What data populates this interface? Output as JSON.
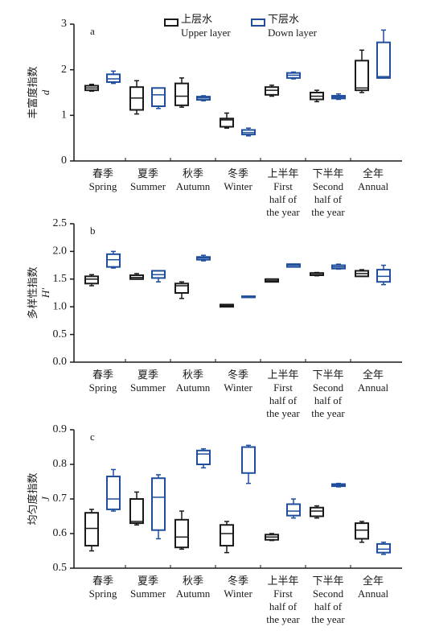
{
  "chart_data": [
    {
      "type": "box",
      "panel_label": "a",
      "ylabel": [
        "丰富度指数",
        "d"
      ],
      "categories": [
        [
          "春季",
          "Spring"
        ],
        [
          "夏季",
          "Summer"
        ],
        [
          "秋季",
          "Autumn"
        ],
        [
          "冬季",
          "Winter"
        ],
        [
          "上半年",
          "First",
          "half of",
          "the year"
        ],
        [
          "下半年",
          "Second",
          "half of",
          "the year"
        ],
        [
          "全年",
          "Annual"
        ]
      ],
      "series": [
        {
          "name": [
            "上层水",
            "Upper layer"
          ],
          "color": "#1a1a1a",
          "values": [
            [
              1.53,
              1.55,
              1.6,
              1.65,
              1.68
            ],
            [
              1.03,
              1.12,
              1.38,
              1.62,
              1.76
            ],
            [
              1.18,
              1.22,
              1.42,
              1.7,
              1.82
            ],
            [
              0.72,
              0.75,
              0.9,
              0.93,
              1.05
            ],
            [
              1.42,
              1.45,
              1.55,
              1.62,
              1.66
            ],
            [
              1.3,
              1.35,
              1.42,
              1.5,
              1.55
            ],
            [
              1.5,
              1.55,
              1.6,
              2.2,
              2.43
            ]
          ]
        },
        {
          "name": [
            "下层水",
            "Down layer"
          ],
          "color": "#1f4e9c",
          "values": [
            [
              1.7,
              1.73,
              1.8,
              1.9,
              1.97
            ],
            [
              1.15,
              1.2,
              1.45,
              1.6,
              1.6
            ],
            [
              1.32,
              1.34,
              1.38,
              1.41,
              1.43
            ],
            [
              0.55,
              0.58,
              0.62,
              0.68,
              0.72
            ],
            [
              1.8,
              1.82,
              1.88,
              1.93,
              1.95
            ],
            [
              1.35,
              1.37,
              1.4,
              1.43,
              1.47
            ],
            [
              1.82,
              1.82,
              1.85,
              2.6,
              2.87
            ]
          ]
        }
      ],
      "ylim": [
        0,
        3
      ],
      "yticks": [
        0,
        1,
        2,
        3
      ]
    },
    {
      "type": "box",
      "panel_label": "b",
      "ylabel": [
        "多样性指数",
        "H'"
      ],
      "categories": [
        [
          "春季",
          "Spring"
        ],
        [
          "夏季",
          "Summer"
        ],
        [
          "秋季",
          "Autumn"
        ],
        [
          "冬季",
          "Winter"
        ],
        [
          "上半年",
          "First",
          "half of",
          "the year"
        ],
        [
          "下半年",
          "Second",
          "half of",
          "the year"
        ],
        [
          "全年",
          "Annual"
        ]
      ],
      "series": [
        {
          "name": [
            "上层水",
            "Upper layer"
          ],
          "color": "#1a1a1a",
          "values": [
            [
              1.38,
              1.42,
              1.5,
              1.55,
              1.58
            ],
            [
              1.5,
              1.5,
              1.53,
              1.57,
              1.6
            ],
            [
              1.15,
              1.25,
              1.38,
              1.42,
              1.45
            ],
            [
              1.0,
              1.0,
              1.02,
              1.04,
              1.04
            ],
            [
              1.45,
              1.45,
              1.47,
              1.5,
              1.5
            ],
            [
              1.56,
              1.57,
              1.6,
              1.61,
              1.62
            ],
            [
              1.55,
              1.55,
              1.6,
              1.65,
              1.67
            ]
          ]
        },
        {
          "name": [
            "下层水",
            "Down layer"
          ],
          "color": "#1f4e9c",
          "values": [
            [
              1.7,
              1.72,
              1.85,
              1.95,
              2.0
            ],
            [
              1.45,
              1.52,
              1.58,
              1.65,
              1.65
            ],
            [
              1.83,
              1.85,
              1.88,
              1.9,
              1.93
            ],
            [
              1.17,
              1.17,
              1.18,
              1.19,
              1.19
            ],
            [
              1.72,
              1.72,
              1.75,
              1.77,
              1.77
            ],
            [
              1.68,
              1.69,
              1.72,
              1.75,
              1.77
            ],
            [
              1.4,
              1.45,
              1.55,
              1.67,
              1.75
            ]
          ]
        }
      ],
      "ylim": [
        0,
        2.5
      ],
      "yticks": [
        {
          "value": 0,
          "label": "0.0"
        },
        0.5,
        {
          "value": 1,
          "label": "1.0"
        },
        1.5,
        {
          "value": 2,
          "label": "2.0"
        },
        2.5
      ]
    },
    {
      "type": "box",
      "panel_label": "c",
      "ylabel": [
        "均匀度指数",
        "J"
      ],
      "categories": [
        [
          "春季",
          "Spring"
        ],
        [
          "夏季",
          "Summer"
        ],
        [
          "秋季",
          "Autumn"
        ],
        [
          "冬季",
          "Winter"
        ],
        [
          "上半年",
          "First",
          "half of",
          "the year"
        ],
        [
          "下半年",
          "Second",
          "half of",
          "the year"
        ],
        [
          "全年",
          "Annual"
        ]
      ],
      "series": [
        {
          "name": [
            "上层水",
            "Upper layer"
          ],
          "color": "#1a1a1a",
          "values": [
            [
              0.55,
              0.565,
              0.615,
              0.66,
              0.67
            ],
            [
              0.625,
              0.63,
              0.635,
              0.7,
              0.72
            ],
            [
              0.555,
              0.56,
              0.59,
              0.64,
              0.665
            ],
            [
              0.545,
              0.565,
              0.6,
              0.625,
              0.635
            ],
            [
              0.58,
              0.582,
              0.59,
              0.597,
              0.6
            ],
            [
              0.645,
              0.65,
              0.665,
              0.675,
              0.68
            ],
            [
              0.575,
              0.585,
              0.61,
              0.63,
              0.635
            ]
          ]
        },
        {
          "name": [
            "下层水",
            "Down layer"
          ],
          "color": "#1f4e9c",
          "values": [
            [
              0.665,
              0.67,
              0.7,
              0.765,
              0.785
            ],
            [
              0.585,
              0.61,
              0.705,
              0.76,
              0.77
            ],
            [
              0.79,
              0.8,
              0.83,
              0.84,
              0.845
            ],
            [
              0.745,
              0.775,
              0.775,
              0.85,
              0.855
            ],
            [
              0.645,
              0.652,
              0.665,
              0.685,
              0.7
            ],
            [
              0.735,
              0.737,
              0.74,
              0.743,
              0.745
            ],
            [
              0.54,
              0.545,
              0.555,
              0.57,
              0.575
            ]
          ]
        }
      ],
      "ylim": [
        0.5,
        0.9
      ],
      "yticks": [
        0.5,
        0.6,
        0.7,
        0.8,
        0.9
      ]
    }
  ]
}
